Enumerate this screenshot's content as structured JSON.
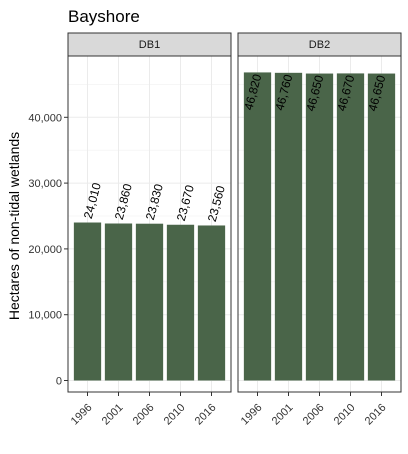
{
  "chart_data": {
    "type": "bar",
    "title": "Bayshore",
    "xlabel": "",
    "ylabel": "Hectares of non-tidal wetlands",
    "ylim": [
      0,
      48500
    ],
    "yticks": [
      0,
      10000,
      20000,
      30000,
      40000
    ],
    "ytick_labels": [
      "0",
      "10,000",
      "20,000",
      "30,000",
      "40,000"
    ],
    "grid": true,
    "bar_color": "#4a6549",
    "categories": [
      "1996",
      "2001",
      "2006",
      "2010",
      "2016"
    ],
    "panels": [
      {
        "name": "DB1",
        "values": [
          24010,
          23860,
          23830,
          23670,
          23560
        ],
        "labels": [
          "24,010",
          "23,860",
          "23,830",
          "23,670",
          "23,560"
        ]
      },
      {
        "name": "DB2",
        "values": [
          46820,
          46760,
          46650,
          46670,
          46650
        ],
        "labels": [
          "46,820",
          "46,760",
          "46,650",
          "46,670",
          "46,650"
        ]
      }
    ]
  }
}
